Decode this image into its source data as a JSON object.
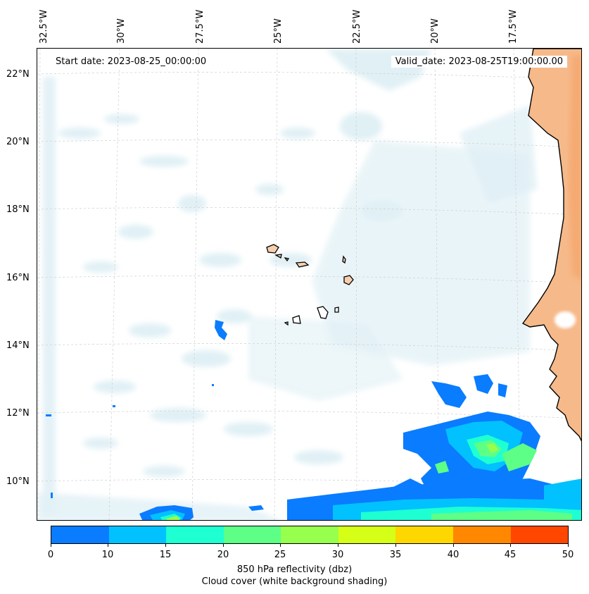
{
  "map": {
    "longitude_labels": [
      "32.5°W",
      "30°W",
      "27.5°W",
      "25°W",
      "22.5°W",
      "20°W",
      "17.5°W"
    ],
    "latitude_labels": [
      "22°N",
      "20°N",
      "18°N",
      "16°N",
      "14°N",
      "12°N",
      "10°N"
    ],
    "start_date": "Start date: 2023-08-25_00:00:00",
    "valid_date": "Valid_date: 2023-08-25T19:00:00.00",
    "colors": {
      "land": "#f6b98a",
      "cloud": "#d6ebf2",
      "coast": "#000000"
    }
  },
  "colorbar": {
    "ticks": [
      "0",
      "10",
      "15",
      "20",
      "25",
      "30",
      "35",
      "40",
      "45",
      "50"
    ],
    "colors": [
      "#0a7cff",
      "#02c1ff",
      "#1effd2",
      "#5dff87",
      "#97ff4e",
      "#d6ff18",
      "#ffd700",
      "#ff8800",
      "#ff4700"
    ],
    "label_line1": "850 hPa reflectivity (dbz)",
    "label_line2": "Cloud cover (white background shading)"
  }
}
